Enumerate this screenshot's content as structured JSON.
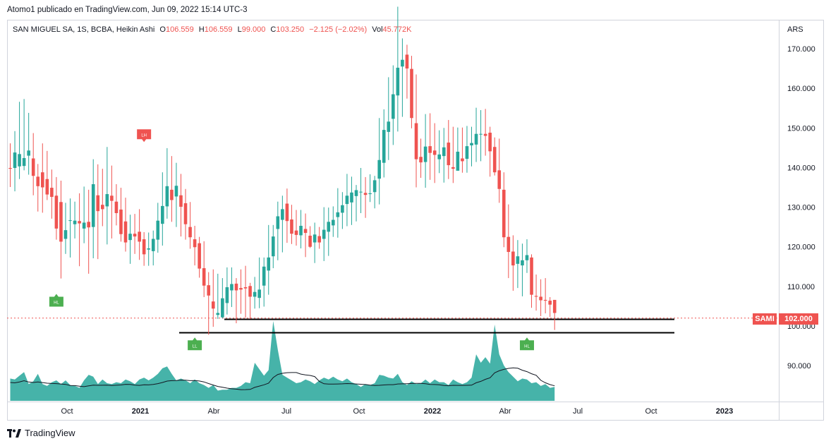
{
  "caption": "Atomo1 publicado en TradingView.com, Jun 09, 2022 15:14 UTC-3",
  "legend": {
    "title": "SAN MIGUEL SA, 1S, BCBA, Heikin Ashi",
    "o_label": "O",
    "o_value": "106.559",
    "h_label": "H",
    "h_value": "106.559",
    "l_label": "L",
    "l_value": "99.000",
    "c_label": "C",
    "c_value": "103.250",
    "change": "−2.125 (−2.02%)",
    "vol_label": "Vol",
    "vol_value": "45.772K"
  },
  "currency": "ARS",
  "price_tag": {
    "symbol": "SAMI",
    "value": "102.000"
  },
  "footer": {
    "brand": "TradingView"
  },
  "colors": {
    "up": "#26a69a",
    "down": "#ef5350",
    "text": "#131722",
    "grid": "#d1d4dc"
  },
  "chart_data": {
    "type": "candlestick",
    "y_ticks": [
      "170.000",
      "160.000",
      "150.000",
      "140.000",
      "130.000",
      "120.000",
      "110.000",
      "100.000",
      "90.000"
    ],
    "ylim": [
      81.5,
      179
    ],
    "x_ticks": [
      "Oct",
      "2021",
      "Abr",
      "Jul",
      "Oct",
      "2022",
      "Abr",
      "Jul",
      "Oct",
      "2023"
    ],
    "current_price": 102.0,
    "support_lines": [
      101.7,
      98.3
    ],
    "pivot_labels": [
      {
        "text": "LH",
        "index": 29,
        "price": 148.4,
        "color": "#ef5350"
      },
      {
        "text": "HL",
        "index": 10,
        "price": 106.5,
        "color": "#4caf50"
      },
      {
        "text": "LL",
        "index": 40,
        "price": 95.5,
        "color": "#4caf50"
      },
      {
        "text": "HL",
        "index": 112,
        "price": 95.5,
        "color": "#4caf50"
      }
    ],
    "candles": [
      {
        "o": 139.9,
        "h": 146.1,
        "l": 135.1,
        "c": 139.7,
        "v": 24
      },
      {
        "o": 139.9,
        "h": 149.2,
        "l": 134.0,
        "c": 143.8,
        "v": 23
      },
      {
        "o": 140.3,
        "h": 156.6,
        "l": 137.1,
        "c": 143.4,
        "v": 27
      },
      {
        "o": 140.4,
        "h": 157.3,
        "l": 139.3,
        "c": 142.4,
        "v": 31
      },
      {
        "o": 143.0,
        "h": 153.8,
        "l": 138.2,
        "c": 144.3,
        "v": 18
      },
      {
        "o": 142.3,
        "h": 148.7,
        "l": 133.0,
        "c": 137.9,
        "v": 21
      },
      {
        "o": 137.7,
        "h": 140.9,
        "l": 128.9,
        "c": 135.3,
        "v": 29
      },
      {
        "o": 138.8,
        "h": 146.1,
        "l": 128.6,
        "c": 135.0,
        "v": 18
      },
      {
        "o": 137.1,
        "h": 144.2,
        "l": 131.8,
        "c": 133.2,
        "v": 16
      },
      {
        "o": 134.9,
        "h": 139.5,
        "l": 127.1,
        "c": 132.6,
        "v": 20
      },
      {
        "o": 132.9,
        "h": 137.6,
        "l": 121.8,
        "c": 124.6,
        "v": 22
      },
      {
        "o": 131.3,
        "h": 136.7,
        "l": 112.0,
        "c": 121.3,
        "v": 18
      },
      {
        "o": 122.0,
        "h": 131.1,
        "l": 118.2,
        "c": 124.2,
        "v": 22
      },
      {
        "o": 126.6,
        "h": 132.2,
        "l": 117.3,
        "c": 126.7,
        "v": 17
      },
      {
        "o": 125.7,
        "h": 131.4,
        "l": 122.1,
        "c": 126.6,
        "v": 16
      },
      {
        "o": 126.5,
        "h": 133.5,
        "l": 115.1,
        "c": 125.9,
        "v": 14
      },
      {
        "o": 124.6,
        "h": 135.2,
        "l": 120.9,
        "c": 126.1,
        "v": 22
      },
      {
        "o": 126.3,
        "h": 134.4,
        "l": 113.2,
        "c": 124.9,
        "v": 28
      },
      {
        "o": 125.0,
        "h": 142.1,
        "l": 117.1,
        "c": 135.8,
        "v": 26
      },
      {
        "o": 133.0,
        "h": 140.8,
        "l": 116.9,
        "c": 129.0,
        "v": 18
      },
      {
        "o": 130.6,
        "h": 139.7,
        "l": 125.2,
        "c": 129.5,
        "v": 23
      },
      {
        "o": 130.2,
        "h": 145.2,
        "l": 120.6,
        "c": 133.3,
        "v": 19
      },
      {
        "o": 132.9,
        "h": 140.5,
        "l": 122.1,
        "c": 131.6,
        "v": 18
      },
      {
        "o": 131.4,
        "h": 135.8,
        "l": 125.4,
        "c": 128.5,
        "v": 20
      },
      {
        "o": 129.4,
        "h": 134.9,
        "l": 121.3,
        "c": 123.2,
        "v": 19
      },
      {
        "o": 126.4,
        "h": 132.4,
        "l": 118.8,
        "c": 121.1,
        "v": 23
      },
      {
        "o": 121.7,
        "h": 128.1,
        "l": 115.7,
        "c": 123.3,
        "v": 21
      },
      {
        "o": 123.3,
        "h": 128.3,
        "l": 118.2,
        "c": 122.6,
        "v": 18
      },
      {
        "o": 123.8,
        "h": 129.5,
        "l": 116.7,
        "c": 121.3,
        "v": 23
      },
      {
        "o": 121.9,
        "h": 123.7,
        "l": 115.2,
        "c": 118.1,
        "v": 25
      },
      {
        "o": 119.3,
        "h": 123.6,
        "l": 115.2,
        "c": 119.6,
        "v": 22
      },
      {
        "o": 118.9,
        "h": 124.1,
        "l": 115.3,
        "c": 122.0,
        "v": 25
      },
      {
        "o": 121.8,
        "h": 131.1,
        "l": 118.5,
        "c": 126.6,
        "v": 29
      },
      {
        "o": 125.8,
        "h": 138.8,
        "l": 120.3,
        "c": 130.3,
        "v": 35
      },
      {
        "o": 130.2,
        "h": 144.9,
        "l": 127.1,
        "c": 135.3,
        "v": 37
      },
      {
        "o": 134.4,
        "h": 142.9,
        "l": 126.3,
        "c": 131.8,
        "v": 29
      },
      {
        "o": 132.7,
        "h": 141.2,
        "l": 125.0,
        "c": 135.4,
        "v": 22
      },
      {
        "o": 133.0,
        "h": 138.4,
        "l": 122.6,
        "c": 130.1,
        "v": 24
      },
      {
        "o": 131.0,
        "h": 134.6,
        "l": 121.8,
        "c": 125.7,
        "v": 22
      },
      {
        "o": 125.0,
        "h": 131.3,
        "l": 119.5,
        "c": 122.4,
        "v": 19
      },
      {
        "o": 121.9,
        "h": 125.3,
        "l": 115.3,
        "c": 119.9,
        "v": 23
      },
      {
        "o": 120.9,
        "h": 122.5,
        "l": 112.2,
        "c": 114.5,
        "v": 19
      },
      {
        "o": 114.6,
        "h": 121.4,
        "l": 107.3,
        "c": 110.2,
        "v": 17
      },
      {
        "o": 110.3,
        "h": 113.6,
        "l": 97.8,
        "c": 107.7,
        "v": 14
      },
      {
        "o": 106.2,
        "h": 114.3,
        "l": 99.8,
        "c": 104.4,
        "v": 17
      },
      {
        "o": 102.8,
        "h": 113.2,
        "l": 101.8,
        "c": 103.3,
        "v": 11
      },
      {
        "o": 102.2,
        "h": 112.1,
        "l": 101.9,
        "c": 107.0,
        "v": 12
      },
      {
        "o": 105.8,
        "h": 114.8,
        "l": 102.9,
        "c": 109.8,
        "v": 12
      },
      {
        "o": 109.0,
        "h": 114.8,
        "l": 104.8,
        "c": 110.6,
        "v": 14
      },
      {
        "o": 110.7,
        "h": 112.1,
        "l": 100.7,
        "c": 109.0,
        "v": 14
      },
      {
        "o": 109.6,
        "h": 114.3,
        "l": 103.1,
        "c": 109.2,
        "v": 16
      },
      {
        "o": 109.8,
        "h": 115.2,
        "l": 102.1,
        "c": 109.5,
        "v": 20
      },
      {
        "o": 110.1,
        "h": 110.9,
        "l": 101.8,
        "c": 107.4,
        "v": 19
      },
      {
        "o": 107.4,
        "h": 112.4,
        "l": 104.4,
        "c": 108.6,
        "v": 41
      },
      {
        "o": 107.1,
        "h": 117.3,
        "l": 104.5,
        "c": 109.2,
        "v": 34
      },
      {
        "o": 110.2,
        "h": 117.3,
        "l": 104.9,
        "c": 115.0,
        "v": 27
      },
      {
        "o": 114.0,
        "h": 125.5,
        "l": 107.9,
        "c": 117.3,
        "v": 33
      },
      {
        "o": 117.6,
        "h": 125.5,
        "l": 114.6,
        "c": 122.6,
        "v": 86
      },
      {
        "o": 124.5,
        "h": 131.4,
        "l": 116.6,
        "c": 127.7,
        "v": 55
      },
      {
        "o": 126.8,
        "h": 132.9,
        "l": 118.6,
        "c": 129.5,
        "v": 28
      },
      {
        "o": 130.9,
        "h": 134.7,
        "l": 121.0,
        "c": 126.5,
        "v": 25
      },
      {
        "o": 126.9,
        "h": 130.6,
        "l": 120.7,
        "c": 123.3,
        "v": 22
      },
      {
        "o": 124.1,
        "h": 129.3,
        "l": 120.3,
        "c": 123.0,
        "v": 19
      },
      {
        "o": 122.9,
        "h": 129.3,
        "l": 119.6,
        "c": 125.3,
        "v": 20
      },
      {
        "o": 124.5,
        "h": 128.4,
        "l": 117.4,
        "c": 123.5,
        "v": 23
      },
      {
        "o": 122.8,
        "h": 125.2,
        "l": 119.7,
        "c": 120.0,
        "v": 21
      },
      {
        "o": 121.1,
        "h": 126.1,
        "l": 115.9,
        "c": 123.1,
        "v": 18
      },
      {
        "o": 122.7,
        "h": 125.0,
        "l": 119.5,
        "c": 121.1,
        "v": 22
      },
      {
        "o": 122.0,
        "h": 130.0,
        "l": 116.4,
        "c": 124.3,
        "v": 25
      },
      {
        "o": 123.8,
        "h": 129.9,
        "l": 117.7,
        "c": 126.3,
        "v": 23
      },
      {
        "o": 125.4,
        "h": 130.2,
        "l": 122.5,
        "c": 126.8,
        "v": 26
      },
      {
        "o": 127.5,
        "h": 134.8,
        "l": 122.3,
        "c": 128.7,
        "v": 23
      },
      {
        "o": 128.6,
        "h": 133.8,
        "l": 124.5,
        "c": 130.5,
        "v": 21
      },
      {
        "o": 130.8,
        "h": 138.4,
        "l": 125.2,
        "c": 132.9,
        "v": 24
      },
      {
        "o": 131.2,
        "h": 137.7,
        "l": 125.5,
        "c": 133.7,
        "v": 20
      },
      {
        "o": 132.8,
        "h": 135.6,
        "l": 126.4,
        "c": 134.3,
        "v": 18
      },
      {
        "o": 133.8,
        "h": 139.9,
        "l": 128.5,
        "c": 133.9,
        "v": 15
      },
      {
        "o": 133.6,
        "h": 137.6,
        "l": 127.3,
        "c": 133.1,
        "v": 18
      },
      {
        "o": 133.3,
        "h": 138.3,
        "l": 131.3,
        "c": 133.5,
        "v": 17
      },
      {
        "o": 133.8,
        "h": 137.9,
        "l": 129.7,
        "c": 136.8,
        "v": 19
      },
      {
        "o": 137.2,
        "h": 152.5,
        "l": 130.7,
        "c": 141.9,
        "v": 28
      },
      {
        "o": 141.2,
        "h": 154.7,
        "l": 137.5,
        "c": 149.5,
        "v": 27
      },
      {
        "o": 149.0,
        "h": 162.8,
        "l": 141.9,
        "c": 151.6,
        "v": 25
      },
      {
        "o": 152.3,
        "h": 165.8,
        "l": 145.7,
        "c": 158.5,
        "v": 24
      },
      {
        "o": 158.2,
        "h": 180.6,
        "l": 149.1,
        "c": 165.2,
        "v": 29
      },
      {
        "o": 165.5,
        "h": 172.6,
        "l": 152.8,
        "c": 167.2,
        "v": 20
      },
      {
        "o": 168.5,
        "h": 171.0,
        "l": 157.4,
        "c": 165.0,
        "v": 17
      },
      {
        "o": 164.9,
        "h": 168.2,
        "l": 149.9,
        "c": 152.5,
        "v": 21
      },
      {
        "o": 151.2,
        "h": 163.5,
        "l": 135.0,
        "c": 142.1,
        "v": 18
      },
      {
        "o": 142.7,
        "h": 147.3,
        "l": 137.4,
        "c": 141.3,
        "v": 19
      },
      {
        "o": 141.4,
        "h": 153.5,
        "l": 134.9,
        "c": 145.3,
        "v": 23
      },
      {
        "o": 145.4,
        "h": 153.7,
        "l": 136.9,
        "c": 143.7,
        "v": 19
      },
      {
        "o": 144.3,
        "h": 151.2,
        "l": 136.1,
        "c": 143.2,
        "v": 23
      },
      {
        "o": 142.1,
        "h": 149.4,
        "l": 138.6,
        "c": 143.3,
        "v": 20
      },
      {
        "o": 142.9,
        "h": 150.0,
        "l": 136.2,
        "c": 145.1,
        "v": 20
      },
      {
        "o": 146.3,
        "h": 152.0,
        "l": 137.1,
        "c": 140.6,
        "v": 17
      },
      {
        "o": 140.1,
        "h": 150.3,
        "l": 136.1,
        "c": 139.7,
        "v": 23
      },
      {
        "o": 139.2,
        "h": 150.1,
        "l": 139.4,
        "c": 144.0,
        "v": 20
      },
      {
        "o": 142.3,
        "h": 150.1,
        "l": 138.7,
        "c": 141.6,
        "v": 18
      },
      {
        "o": 142.2,
        "h": 150.5,
        "l": 138.7,
        "c": 145.4,
        "v": 20
      },
      {
        "o": 145.6,
        "h": 150.3,
        "l": 140.3,
        "c": 146.2,
        "v": 25
      },
      {
        "o": 145.8,
        "h": 155.1,
        "l": 141.4,
        "c": 148.5,
        "v": 50
      },
      {
        "o": 148.5,
        "h": 154.5,
        "l": 141.6,
        "c": 148.5,
        "v": 41
      },
      {
        "o": 148.5,
        "h": 154.8,
        "l": 143.0,
        "c": 148.0,
        "v": 47
      },
      {
        "o": 148.8,
        "h": 150.3,
        "l": 137.7,
        "c": 144.1,
        "v": 40
      },
      {
        "o": 145.2,
        "h": 147.6,
        "l": 138.0,
        "c": 138.8,
        "v": 82
      },
      {
        "o": 139.3,
        "h": 147.3,
        "l": 131.1,
        "c": 134.6,
        "v": 50
      },
      {
        "o": 134.4,
        "h": 138.8,
        "l": 119.9,
        "c": 122.4,
        "v": 38
      },
      {
        "o": 122.5,
        "h": 130.7,
        "l": 112.1,
        "c": 118.7,
        "v": 31
      },
      {
        "o": 118.8,
        "h": 122.9,
        "l": 108.9,
        "c": 115.3,
        "v": 26
      },
      {
        "o": 115.7,
        "h": 121.7,
        "l": 109.6,
        "c": 117.6,
        "v": 21
      },
      {
        "o": 115.3,
        "h": 120.8,
        "l": 107.5,
        "c": 116.6,
        "v": 24
      },
      {
        "o": 116.6,
        "h": 121.9,
        "l": 113.4,
        "c": 117.9,
        "v": 23
      },
      {
        "o": 117.3,
        "h": 118.1,
        "l": 104.6,
        "c": 107.9,
        "v": 19
      },
      {
        "o": 107.6,
        "h": 113.0,
        "l": 103.9,
        "c": 107.4,
        "v": 20
      },
      {
        "o": 107.4,
        "h": 111.8,
        "l": 102.5,
        "c": 106.5,
        "v": 16
      },
      {
        "o": 106.6,
        "h": 112.1,
        "l": 103.2,
        "c": 106.4,
        "v": 18
      },
      {
        "o": 106.4,
        "h": 107.3,
        "l": 102.3,
        "c": 105.4,
        "v": 14
      },
      {
        "o": 106.6,
        "h": 106.6,
        "l": 99.0,
        "c": 103.3,
        "v": 15
      }
    ]
  }
}
